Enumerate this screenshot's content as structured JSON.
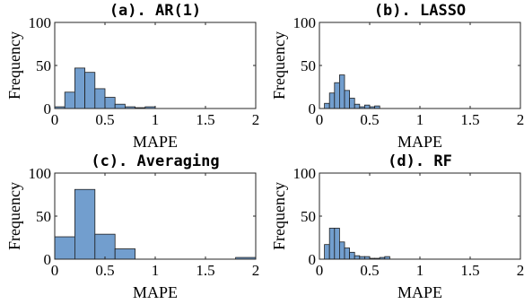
{
  "chart_data": [
    {
      "type": "bar",
      "title": "(a). AR(1)",
      "xlabel": "MAPE",
      "ylabel": "Frequency",
      "xlim": [
        0,
        2
      ],
      "ylim": [
        0,
        100
      ],
      "xticks": [
        "0",
        "0.5",
        "1",
        "1.5",
        "2"
      ],
      "yticks": [
        "0",
        "50",
        "100"
      ],
      "bin_edges": [
        0.0,
        0.1,
        0.2,
        0.3,
        0.4,
        0.5,
        0.6,
        0.7,
        0.8,
        0.9,
        1.0
      ],
      "values": [
        2,
        19,
        47,
        42,
        23,
        13,
        5,
        2,
        1,
        2
      ],
      "bar_color": "#729ECE",
      "edge_color": "#1F1F1F"
    },
    {
      "type": "bar",
      "title": "(b). LASSO",
      "xlabel": "MAPE",
      "ylabel": "Frequency",
      "xlim": [
        0,
        2
      ],
      "ylim": [
        0,
        100
      ],
      "xticks": [
        "0",
        "0.5",
        "1",
        "1.5",
        "2"
      ],
      "yticks": [
        "0",
        "50",
        "100"
      ],
      "bin_edges": [
        0.05,
        0.1,
        0.15,
        0.2,
        0.25,
        0.3,
        0.35,
        0.4,
        0.45,
        0.5,
        0.55,
        0.6
      ],
      "values": [
        6,
        18,
        30,
        39,
        21,
        12,
        5,
        2,
        4,
        2,
        3
      ],
      "bar_color": "#729ECE",
      "edge_color": "#1F1F1F"
    },
    {
      "type": "bar",
      "title": "(c). Averaging",
      "xlabel": "MAPE",
      "ylabel": "Frequency",
      "xlim": [
        0,
        2
      ],
      "ylim": [
        0,
        100
      ],
      "xticks": [
        "0",
        "0.5",
        "1",
        "1.5",
        "2"
      ],
      "yticks": [
        "0",
        "50",
        "100"
      ],
      "bin_edges": [
        0.0,
        0.2,
        0.4,
        0.6,
        0.8,
        1.0,
        1.2,
        1.4,
        1.6,
        1.8,
        2.0
      ],
      "values": [
        26,
        81,
        29,
        12,
        0,
        0,
        0,
        0,
        0,
        2
      ],
      "bar_color": "#729ECE",
      "edge_color": "#1F1F1F"
    },
    {
      "type": "bar",
      "title": "(d). RF",
      "xlabel": "MAPE",
      "ylabel": "Frequency",
      "xlim": [
        0,
        2
      ],
      "ylim": [
        0,
        100
      ],
      "xticks": [
        "0",
        "0.5",
        "1",
        "1.5",
        "2"
      ],
      "yticks": [
        "0",
        "50",
        "100"
      ],
      "bin_edges": [
        0.05,
        0.1,
        0.15,
        0.2,
        0.25,
        0.3,
        0.35,
        0.4,
        0.45,
        0.5,
        0.55,
        0.6,
        0.65,
        0.7
      ],
      "values": [
        17,
        36,
        36,
        20,
        13,
        8,
        4,
        3,
        3,
        1,
        1,
        2,
        3
      ],
      "bar_color": "#729ECE",
      "edge_color": "#1F1F1F"
    }
  ]
}
